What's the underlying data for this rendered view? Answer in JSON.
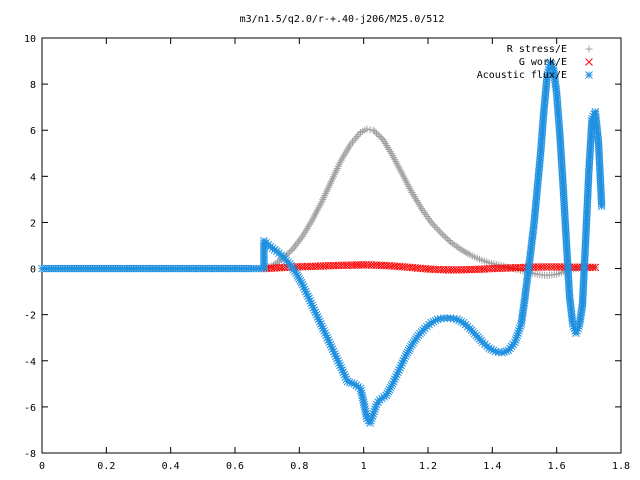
{
  "chart_data": {
    "type": "scatter",
    "title": "m3/n1.5/q2.0/r-+.40-j206/M25.0/512",
    "xlabel": "",
    "ylabel": "",
    "xlim": [
      0,
      1.8
    ],
    "ylim": [
      -8,
      10
    ],
    "x_ticks": [
      "0",
      "0.2",
      "0.4",
      "0.6",
      "0.8",
      "1",
      "1.2",
      "1.4",
      "1.6",
      "1.8"
    ],
    "y_ticks": [
      "-8",
      "-6",
      "-4",
      "-2",
      "0",
      "2",
      "4",
      "6",
      "8",
      "10"
    ],
    "grid": false,
    "legend_position": "top-right",
    "series": [
      {
        "name": "R stress/E",
        "marker": "+",
        "color": "#a0a0a0",
        "points": [
          [
            0.69,
            0.0
          ],
          [
            0.72,
            0.15
          ],
          [
            0.75,
            0.45
          ],
          [
            0.78,
            0.85
          ],
          [
            0.81,
            1.4
          ],
          [
            0.84,
            2.1
          ],
          [
            0.87,
            2.9
          ],
          [
            0.9,
            3.8
          ],
          [
            0.93,
            4.7
          ],
          [
            0.96,
            5.4
          ],
          [
            0.99,
            5.9
          ],
          [
            1.01,
            6.05
          ],
          [
            1.03,
            6.0
          ],
          [
            1.06,
            5.6
          ],
          [
            1.09,
            4.9
          ],
          [
            1.12,
            4.1
          ],
          [
            1.15,
            3.3
          ],
          [
            1.18,
            2.6
          ],
          [
            1.21,
            2.0
          ],
          [
            1.24,
            1.55
          ],
          [
            1.27,
            1.15
          ],
          [
            1.3,
            0.85
          ],
          [
            1.33,
            0.6
          ],
          [
            1.36,
            0.4
          ],
          [
            1.39,
            0.25
          ],
          [
            1.42,
            0.15
          ],
          [
            1.45,
            0.05
          ],
          [
            1.48,
            -0.05
          ],
          [
            1.51,
            -0.15
          ],
          [
            1.54,
            -0.25
          ],
          [
            1.57,
            -0.3
          ],
          [
            1.6,
            -0.25
          ],
          [
            1.63,
            -0.1
          ],
          [
            1.66,
            0.0
          ],
          [
            1.69,
            0.05
          ],
          [
            1.72,
            0.05
          ]
        ]
      },
      {
        "name": "G work/E",
        "marker": "x",
        "color": "#ff0000",
        "points": [
          [
            0.69,
            0.0
          ],
          [
            0.73,
            0.03
          ],
          [
            0.77,
            0.06
          ],
          [
            0.81,
            0.08
          ],
          [
            0.85,
            0.1
          ],
          [
            0.89,
            0.12
          ],
          [
            0.93,
            0.14
          ],
          [
            0.97,
            0.15
          ],
          [
            1.0,
            0.16
          ],
          [
            1.04,
            0.15
          ],
          [
            1.08,
            0.12
          ],
          [
            1.12,
            0.08
          ],
          [
            1.16,
            0.03
          ],
          [
            1.2,
            -0.02
          ],
          [
            1.24,
            -0.05
          ],
          [
            1.28,
            -0.06
          ],
          [
            1.32,
            -0.05
          ],
          [
            1.36,
            -0.03
          ],
          [
            1.4,
            0.0
          ],
          [
            1.44,
            0.02
          ],
          [
            1.48,
            0.04
          ],
          [
            1.52,
            0.06
          ],
          [
            1.56,
            0.07
          ],
          [
            1.6,
            0.07
          ],
          [
            1.64,
            0.06
          ],
          [
            1.68,
            0.06
          ],
          [
            1.72,
            0.05
          ]
        ]
      },
      {
        "name": "Acoustic flux/E",
        "marker": "*",
        "color": "#2090e0",
        "points": [
          [
            0.0,
            0.0
          ],
          [
            0.05,
            0.0
          ],
          [
            0.1,
            0.0
          ],
          [
            0.15,
            0.0
          ],
          [
            0.2,
            0.0
          ],
          [
            0.25,
            0.0
          ],
          [
            0.3,
            0.0
          ],
          [
            0.35,
            0.0
          ],
          [
            0.4,
            0.0
          ],
          [
            0.45,
            0.0
          ],
          [
            0.5,
            0.0
          ],
          [
            0.55,
            0.0
          ],
          [
            0.6,
            0.0
          ],
          [
            0.65,
            0.0
          ],
          [
            0.69,
            0.0
          ],
          [
            0.69,
            1.2
          ],
          [
            0.71,
            0.95
          ],
          [
            0.73,
            0.75
          ],
          [
            0.75,
            0.5
          ],
          [
            0.77,
            0.2
          ],
          [
            0.79,
            -0.2
          ],
          [
            0.81,
            -0.7
          ],
          [
            0.83,
            -1.3
          ],
          [
            0.85,
            -1.9
          ],
          [
            0.87,
            -2.5
          ],
          [
            0.89,
            -3.1
          ],
          [
            0.91,
            -3.7
          ],
          [
            0.93,
            -4.3
          ],
          [
            0.95,
            -4.9
          ],
          [
            0.97,
            -5.0
          ],
          [
            0.99,
            -5.2
          ],
          [
            1.0,
            -5.8
          ],
          [
            1.01,
            -6.5
          ],
          [
            1.02,
            -6.7
          ],
          [
            1.03,
            -6.3
          ],
          [
            1.04,
            -5.9
          ],
          [
            1.05,
            -5.7
          ],
          [
            1.07,
            -5.5
          ],
          [
            1.09,
            -5.0
          ],
          [
            1.11,
            -4.4
          ],
          [
            1.13,
            -3.8
          ],
          [
            1.15,
            -3.3
          ],
          [
            1.17,
            -2.9
          ],
          [
            1.19,
            -2.6
          ],
          [
            1.21,
            -2.35
          ],
          [
            1.23,
            -2.2
          ],
          [
            1.25,
            -2.15
          ],
          [
            1.27,
            -2.15
          ],
          [
            1.29,
            -2.2
          ],
          [
            1.31,
            -2.35
          ],
          [
            1.33,
            -2.6
          ],
          [
            1.35,
            -2.9
          ],
          [
            1.37,
            -3.2
          ],
          [
            1.39,
            -3.45
          ],
          [
            1.41,
            -3.6
          ],
          [
            1.43,
            -3.65
          ],
          [
            1.45,
            -3.55
          ],
          [
            1.47,
            -3.2
          ],
          [
            1.49,
            -2.4
          ],
          [
            1.5,
            -1.4
          ],
          [
            1.51,
            -0.3
          ],
          [
            1.52,
            0.8
          ],
          [
            1.53,
            2.0
          ],
          [
            1.54,
            3.5
          ],
          [
            1.55,
            5.0
          ],
          [
            1.56,
            6.8
          ],
          [
            1.57,
            8.3
          ],
          [
            1.58,
            8.95
          ],
          [
            1.59,
            8.7
          ],
          [
            1.6,
            7.6
          ],
          [
            1.61,
            5.8
          ],
          [
            1.62,
            3.6
          ],
          [
            1.63,
            1.2
          ],
          [
            1.64,
            -1.2
          ],
          [
            1.65,
            -2.4
          ],
          [
            1.66,
            -2.8
          ],
          [
            1.67,
            -2.5
          ],
          [
            1.68,
            -1.6
          ],
          [
            1.69,
            1.2
          ],
          [
            1.7,
            4.2
          ],
          [
            1.71,
            6.5
          ],
          [
            1.72,
            6.8
          ],
          [
            1.73,
            5.5
          ],
          [
            1.74,
            2.7
          ]
        ]
      }
    ]
  }
}
